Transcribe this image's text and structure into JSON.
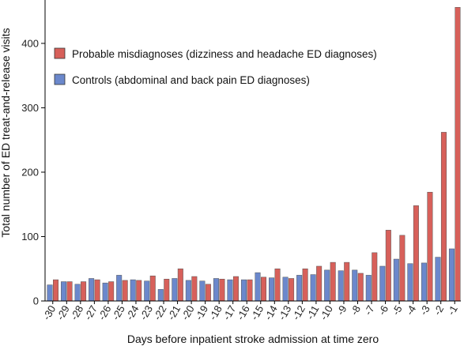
{
  "chart_data": {
    "type": "bar",
    "xlabel": "Days before inpatient stroke admission at time zero",
    "ylabel": "Total number of ED treat-and-release visits",
    "ylim": [
      0,
      460
    ],
    "yticks": [
      0,
      100,
      200,
      300,
      400
    ],
    "grid": false,
    "legend_position": "top-left",
    "categories": [
      "-30",
      "-29",
      "-28",
      "-27",
      "-26",
      "-25",
      "-24",
      "-23",
      "-22",
      "-21",
      "-20",
      "-19",
      "-18",
      "-17",
      "-16",
      "-15",
      "-14",
      "-13",
      "-12",
      "-11",
      "-10",
      "-9",
      "-8",
      "-7",
      "-6",
      "-5",
      "-4",
      "-3",
      "-2",
      "-1"
    ],
    "series": [
      {
        "name": "Controls (abdominal and back pain ED diagnoses)",
        "color": "#6b88cc",
        "values": [
          25,
          30,
          26,
          35,
          28,
          40,
          33,
          31,
          18,
          35,
          32,
          31,
          35,
          33,
          33,
          44,
          36,
          37,
          40,
          41,
          48,
          47,
          48,
          40,
          54,
          65,
          58,
          59,
          68,
          81
        ]
      },
      {
        "name": "Probable misdiagnoses (dizziness and headache ED diagnoses)",
        "color": "#d7605a",
        "values": [
          33,
          30,
          30,
          33,
          30,
          32,
          32,
          39,
          34,
          50,
          38,
          26,
          34,
          38,
          33,
          37,
          50,
          35,
          50,
          54,
          60,
          60,
          43,
          75,
          110,
          102,
          148,
          169,
          262,
          456
        ]
      }
    ]
  }
}
